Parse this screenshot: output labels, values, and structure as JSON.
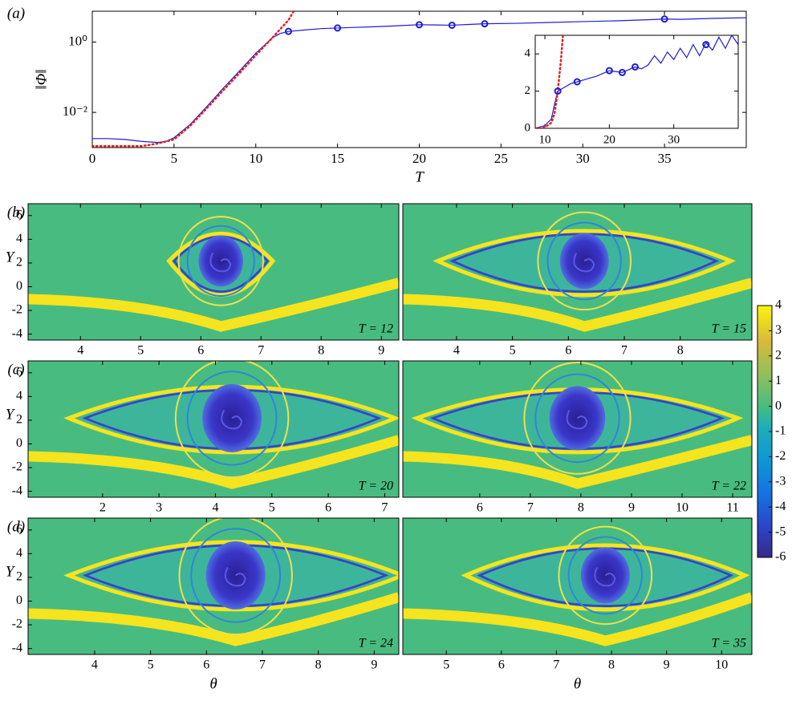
{
  "chart_data": [
    {
      "type": "line",
      "panel_label": "(a)",
      "x_label": "T",
      "y_label": "‖Φ‖",
      "log_y": true,
      "xlim": [
        0,
        40
      ],
      "xticks": [
        0,
        5,
        10,
        15,
        20,
        25,
        30,
        35
      ],
      "ylim": [
        0.001,
        7.5
      ],
      "yticks": [
        {
          "value": 1,
          "label": "10⁰"
        },
        {
          "value": 0.01,
          "label": "10⁻²"
        }
      ],
      "series": [
        {
          "style": "solid",
          "color": "#1c1cd6",
          "x": [
            0,
            1,
            2,
            3,
            4,
            4.5,
            5,
            6,
            7,
            8,
            9,
            10,
            11,
            11.5,
            12,
            13,
            14,
            15,
            16,
            17,
            18,
            19,
            20,
            21,
            22,
            23,
            24,
            26,
            28,
            30,
            32,
            34,
            35,
            36,
            38,
            40
          ],
          "values": [
            0.0018,
            0.0018,
            0.0017,
            0.0015,
            0.0014,
            0.0015,
            0.0019,
            0.0046,
            0.0145,
            0.048,
            0.15,
            0.48,
            1.3,
            1.75,
            2.0,
            2.2,
            2.4,
            2.5,
            2.6,
            2.7,
            2.8,
            2.95,
            3.1,
            3.05,
            3.0,
            3.15,
            3.3,
            3.4,
            3.6,
            3.8,
            4.0,
            4.3,
            4.5,
            4.4,
            4.7,
            4.9
          ]
        },
        {
          "style": "dotted",
          "color": "#e0201f",
          "x": [
            0,
            1,
            2,
            3,
            4,
            5,
            6,
            7,
            8,
            9,
            10,
            11,
            12,
            12.3
          ],
          "values": [
            0.0011,
            0.0011,
            0.0011,
            0.0011,
            0.0013,
            0.0017,
            0.0042,
            0.013,
            0.042,
            0.13,
            0.42,
            1.3,
            4.2,
            7.2
          ]
        },
        {
          "style": "markers",
          "color": "#1c1cd6",
          "x": [
            12,
            15,
            20,
            22,
            24,
            35
          ],
          "values": [
            2.0,
            2.5,
            3.1,
            3.0,
            3.3,
            4.5
          ]
        }
      ]
    },
    {
      "type": "line",
      "log_y": false,
      "xlim": [
        8.5,
        40
      ],
      "xticks": [
        10,
        20,
        30
      ],
      "ylim": [
        0,
        5
      ],
      "yticks": [
        0,
        2,
        4
      ],
      "series": [
        {
          "style": "solid",
          "color": "#1c1cd6",
          "x": [
            8.5,
            9,
            10,
            11,
            11.5,
            12,
            13,
            14,
            15,
            16,
            17,
            18,
            19,
            20,
            21,
            22,
            23,
            24,
            25,
            26,
            27,
            28,
            29,
            30,
            31,
            32,
            33,
            34,
            35,
            36,
            37,
            38,
            39,
            40
          ],
          "values": [
            0,
            0.05,
            0.15,
            0.5,
            1.3,
            2.0,
            2.2,
            2.4,
            2.5,
            2.6,
            2.7,
            2.8,
            2.95,
            3.1,
            3.05,
            3.0,
            3.15,
            3.3,
            3.2,
            3.4,
            3.9,
            3.5,
            4.1,
            3.7,
            4.3,
            3.8,
            4.5,
            3.9,
            4.6,
            4.2,
            4.9,
            4.3,
            5.0,
            4.5
          ]
        },
        {
          "style": "dotted",
          "color": "#e0201f",
          "x": [
            8.5,
            9,
            10,
            11,
            11.5,
            12,
            12.5,
            12.8
          ],
          "values": [
            0,
            0.01,
            0.05,
            0.3,
            0.8,
            2.0,
            3.7,
            5.0
          ]
        },
        {
          "style": "markers",
          "color": "#1c1cd6",
          "x": [
            12,
            15,
            20,
            22,
            24,
            35
          ],
          "values": [
            2.0,
            2.5,
            3.1,
            3.0,
            3.3,
            4.5
          ]
        }
      ]
    },
    {
      "type": "heatmap",
      "panel_label": "(b)",
      "y_label": "Y",
      "annotation": "T = 12",
      "xlim": [
        3.13,
        9.29
      ],
      "xticks": [
        4,
        5,
        6,
        7,
        8,
        9
      ],
      "ylim": [
        -4.5,
        7
      ],
      "yticks": [
        -4,
        -2,
        0,
        2,
        4,
        6
      ]
    },
    {
      "type": "heatmap",
      "annotation": "T = 15",
      "xlim": [
        3.04,
        9.28
      ],
      "xticks": [
        4,
        5,
        6,
        7,
        8
      ]
    },
    {
      "type": "heatmap",
      "panel_label": "(c)",
      "y_label": "Y",
      "annotation": "T = 20",
      "xlim": [
        0.68,
        7.25
      ],
      "xticks": [
        2,
        3,
        4,
        5,
        6,
        7
      ],
      "ylim": [
        -4.5,
        7
      ],
      "yticks": [
        -4,
        -2,
        0,
        2,
        4,
        6
      ]
    },
    {
      "type": "heatmap",
      "annotation": "T = 22",
      "xlim": [
        4.48,
        11.38
      ],
      "xticks": [
        6,
        7,
        8,
        9,
        10,
        11
      ]
    },
    {
      "type": "heatmap",
      "panel_label": "(d)",
      "y_label": "Y",
      "x_label": "θ",
      "annotation": "T = 24",
      "xlim": [
        2.81,
        9.44
      ],
      "xticks": [
        4,
        5,
        6,
        7,
        8,
        9
      ],
      "ylim": [
        -4.5,
        7
      ],
      "yticks": [
        -4,
        -2,
        0,
        2,
        4,
        6
      ]
    },
    {
      "type": "heatmap",
      "x_label": "θ",
      "annotation": "T = 35",
      "xlim": [
        4.21,
        10.55
      ],
      "xticks": [
        5,
        6,
        7,
        8,
        9,
        10
      ]
    },
    {
      "type": "colorbar",
      "ylim": [
        -6,
        4
      ],
      "yticks": [
        -6,
        -5,
        -4,
        -3,
        -2,
        -1,
        0,
        1,
        2,
        3,
        4
      ]
    }
  ]
}
